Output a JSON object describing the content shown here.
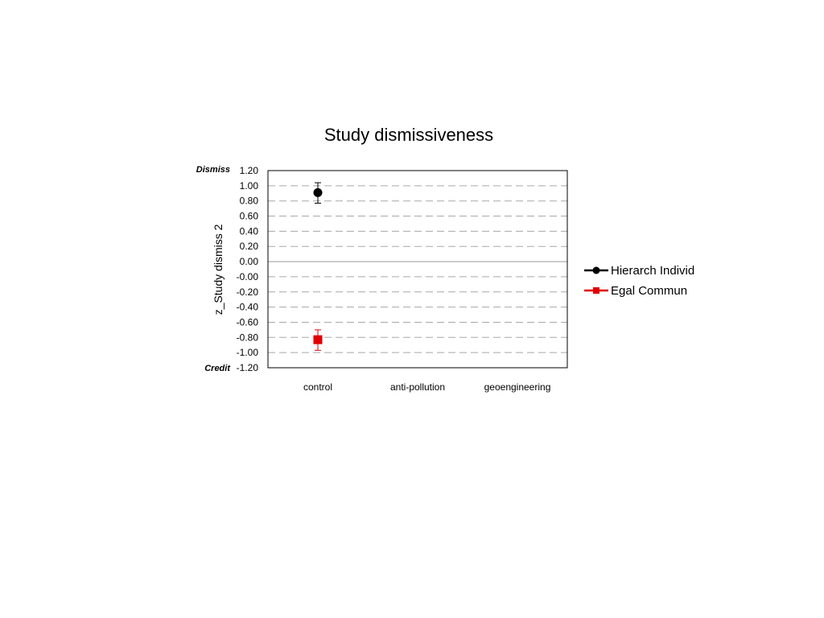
{
  "chart_data": {
    "type": "scatter",
    "title": "Study dismissiveness",
    "ylabel": "z_Study dismiss 2",
    "xlabel": "",
    "categories": [
      "control",
      "anti-pollution",
      "geoengineering"
    ],
    "ylim": [
      -1.2,
      1.2
    ],
    "yticks": [
      "1.20",
      "1.00",
      "0.80",
      "0.60",
      "0.40",
      "0.20",
      "0.00",
      "-0.00",
      "-0.20",
      "-0.40",
      "-0.60",
      "-0.80",
      "-1.00",
      "-1.20"
    ],
    "ytick_values": [
      1.2,
      1.0,
      0.8,
      0.6,
      0.4,
      0.2,
      0.0,
      0.0,
      -0.2,
      -0.4,
      -0.6,
      -0.8,
      -1.0,
      -1.2
    ],
    "y_top_annotation": "Dismiss",
    "y_bottom_annotation": "Credit",
    "grid": true,
    "legend_position": "right",
    "series": [
      {
        "name": "Hierarch Individ",
        "color": "#000000",
        "marker": "circle",
        "points": [
          {
            "category": "control",
            "y": 0.91,
            "err_low": 0.77,
            "err_high": 1.04
          }
        ]
      },
      {
        "name": "Egal Commun",
        "color": "#e00000",
        "marker": "square",
        "points": [
          {
            "category": "control",
            "y": -0.83,
            "err_low": -0.97,
            "err_high": -0.7
          }
        ]
      }
    ]
  }
}
